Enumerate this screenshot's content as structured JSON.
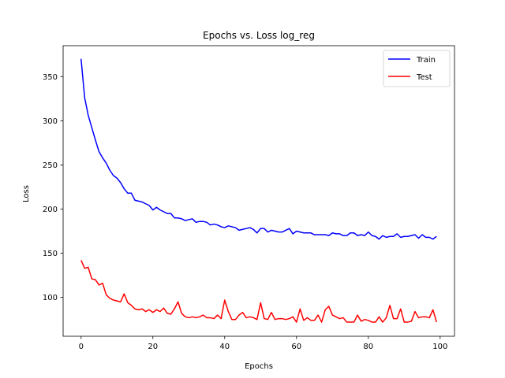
{
  "chart_data": {
    "type": "line",
    "title": "Epochs vs. Loss log_reg",
    "xlabel": "Epochs",
    "ylabel": "Loss",
    "xlim": [
      -5,
      104
    ],
    "ylim": [
      56,
      385
    ],
    "xticks": [
      0,
      20,
      40,
      60,
      80,
      100
    ],
    "yticks": [
      100,
      150,
      200,
      250,
      300,
      350
    ],
    "grid": false,
    "legend_position": "top-right",
    "series": [
      {
        "name": "Train",
        "color": "#0000ff",
        "x": [
          0,
          1,
          2,
          3,
          4,
          5,
          6,
          7,
          8,
          9,
          10,
          11,
          12,
          13,
          14,
          15,
          16,
          17,
          18,
          19,
          20,
          21,
          22,
          23,
          24,
          25,
          26,
          27,
          28,
          29,
          30,
          31,
          32,
          33,
          34,
          35,
          36,
          37,
          38,
          39,
          40,
          41,
          42,
          43,
          44,
          45,
          46,
          47,
          48,
          49,
          50,
          51,
          52,
          53,
          54,
          55,
          56,
          57,
          58,
          59,
          60,
          61,
          62,
          63,
          64,
          65,
          66,
          67,
          68,
          69,
          70,
          71,
          72,
          73,
          74,
          75,
          76,
          77,
          78,
          79,
          80,
          81,
          82,
          83,
          84,
          85,
          86,
          87,
          88,
          89,
          90,
          91,
          92,
          93,
          94,
          95,
          96,
          97,
          98,
          99
        ],
        "values": [
          370,
          326,
          306,
          292,
          278,
          265,
          258,
          252,
          244,
          238,
          235,
          230,
          223,
          218,
          218,
          210,
          209,
          208,
          206,
          204,
          199,
          202,
          199,
          197,
          195,
          195,
          190,
          190,
          189,
          187,
          188,
          189,
          185,
          186,
          186,
          185,
          182,
          183,
          182,
          180,
          179,
          181,
          180,
          179,
          176,
          177,
          178,
          179,
          177,
          173,
          178,
          178,
          174,
          176,
          175,
          174,
          174,
          176,
          178,
          172,
          175,
          174,
          173,
          173,
          173,
          171,
          171,
          171,
          171,
          170,
          173,
          172,
          172,
          170,
          170,
          173,
          173,
          170,
          171,
          170,
          174,
          170,
          169,
          166,
          170,
          168,
          169,
          169,
          172,
          168,
          169,
          169,
          170,
          171,
          167,
          171,
          168,
          168,
          166,
          169
        ]
      },
      {
        "name": "Test",
        "color": "#ff0000",
        "x": [
          0,
          1,
          2,
          3,
          4,
          5,
          6,
          7,
          8,
          9,
          10,
          11,
          12,
          13,
          14,
          15,
          16,
          17,
          18,
          19,
          20,
          21,
          22,
          23,
          24,
          25,
          26,
          27,
          28,
          29,
          30,
          31,
          32,
          33,
          34,
          35,
          36,
          37,
          38,
          39,
          40,
          41,
          42,
          43,
          44,
          45,
          46,
          47,
          48,
          49,
          50,
          51,
          52,
          53,
          54,
          55,
          56,
          57,
          58,
          59,
          60,
          61,
          62,
          63,
          64,
          65,
          66,
          67,
          68,
          69,
          70,
          71,
          72,
          73,
          74,
          75,
          76,
          77,
          78,
          79,
          80,
          81,
          82,
          83,
          84,
          85,
          86,
          87,
          88,
          89,
          90,
          91,
          92,
          93,
          94,
          95,
          96,
          97,
          98,
          99
        ],
        "values": [
          142,
          133,
          134,
          121,
          120,
          114,
          116,
          103,
          99,
          97,
          96,
          95,
          104,
          94,
          91,
          87,
          86,
          87,
          84,
          86,
          83,
          86,
          84,
          88,
          82,
          81,
          87,
          95,
          82,
          78,
          77,
          78,
          77,
          78,
          80,
          77,
          77,
          76,
          80,
          76,
          97,
          84,
          75,
          75,
          80,
          83,
          77,
          78,
          77,
          75,
          94,
          76,
          75,
          83,
          75,
          76,
          76,
          75,
          76,
          78,
          72,
          87,
          74,
          77,
          74,
          74,
          80,
          72,
          86,
          90,
          80,
          78,
          76,
          77,
          72,
          72,
          72,
          80,
          73,
          75,
          74,
          72,
          72,
          78,
          72,
          77,
          91,
          76,
          76,
          87,
          72,
          72,
          73,
          84,
          77,
          78,
          78,
          77,
          86,
          72
        ]
      }
    ]
  }
}
